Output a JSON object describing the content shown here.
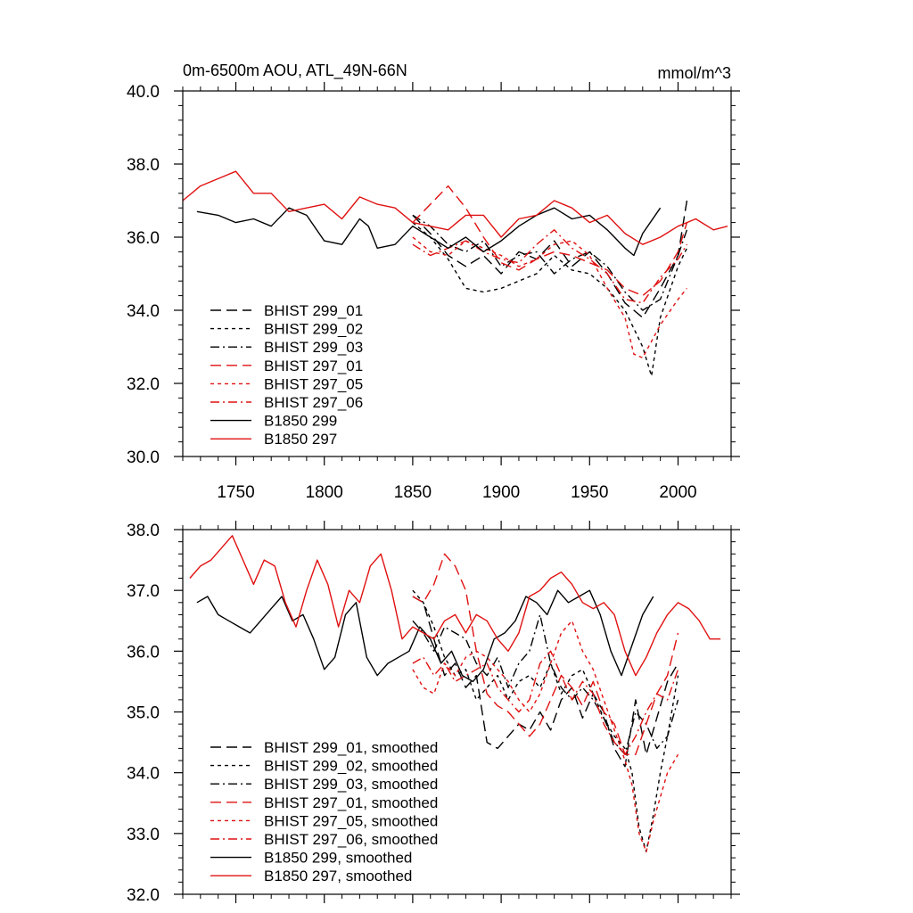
{
  "chart_data": [
    {
      "type": "line",
      "title": "0m-6500m AOU, ATL_49N-66N",
      "units": "mmol/m^3",
      "xlim": [
        1720,
        2030
      ],
      "ylim": [
        30,
        40
      ],
      "xticks": [
        1750,
        1800,
        1850,
        1900,
        1950,
        2000
      ],
      "yticks": [
        30,
        32,
        34,
        36,
        38,
        40
      ],
      "ytick_labels": [
        "30.0",
        "32.0",
        "34.0",
        "36.0",
        "38.0",
        "40.0"
      ],
      "grid": false,
      "legend_position": "bottom-left",
      "series": [
        {
          "name": "BHIST 299_01",
          "color": "#000000",
          "dash": "long-dash",
          "x": [
            1850,
            1860,
            1870,
            1880,
            1890,
            1900,
            1910,
            1920,
            1930,
            1940,
            1950,
            1960,
            1970,
            1980,
            1990,
            2000,
            2005
          ],
          "y": [
            36.6,
            36.1,
            35.5,
            35.2,
            35.5,
            35.0,
            35.6,
            35.4,
            35.9,
            35.2,
            35.6,
            35.0,
            34.2,
            33.8,
            34.6,
            35.5,
            37.0
          ]
        },
        {
          "name": "BHIST 299_02",
          "color": "#000000",
          "dash": "short-dash",
          "x": [
            1850,
            1860,
            1870,
            1880,
            1890,
            1900,
            1910,
            1920,
            1930,
            1940,
            1950,
            1960,
            1970,
            1980,
            1985,
            1990,
            2000,
            2005
          ],
          "y": [
            36.4,
            36.0,
            35.4,
            34.6,
            34.5,
            34.6,
            34.8,
            35.0,
            35.5,
            35.1,
            35.0,
            34.6,
            34.0,
            33.0,
            32.2,
            33.8,
            35.2,
            35.7
          ]
        },
        {
          "name": "BHIST 299_03",
          "color": "#000000",
          "dash": "dash-dot",
          "x": [
            1850,
            1860,
            1870,
            1880,
            1890,
            1900,
            1910,
            1920,
            1930,
            1940,
            1950,
            1960,
            1970,
            1980,
            1990,
            2000,
            2005
          ],
          "y": [
            36.6,
            36.3,
            35.8,
            35.6,
            35.9,
            35.2,
            35.5,
            35.6,
            35.0,
            35.4,
            35.6,
            35.2,
            34.5,
            34.0,
            34.3,
            35.5,
            36.2
          ]
        },
        {
          "name": "BHIST 297_01",
          "color": "#e01010",
          "dash": "long-dash",
          "x": [
            1850,
            1860,
            1870,
            1880,
            1890,
            1900,
            1910,
            1920,
            1930,
            1940,
            1950,
            1960,
            1970,
            1980,
            1990,
            2000,
            2005
          ],
          "y": [
            36.4,
            36.9,
            37.4,
            36.8,
            36.0,
            35.3,
            35.1,
            35.4,
            35.6,
            35.5,
            35.3,
            35.1,
            34.6,
            34.4,
            34.8,
            35.6,
            36.4
          ]
        },
        {
          "name": "BHIST 297_05",
          "color": "#e01010",
          "dash": "short-dash",
          "x": [
            1850,
            1860,
            1870,
            1880,
            1890,
            1900,
            1910,
            1920,
            1930,
            1940,
            1950,
            1960,
            1970,
            1975,
            1980,
            1990,
            2000,
            2005
          ],
          "y": [
            36.0,
            35.6,
            35.5,
            35.9,
            35.7,
            35.5,
            35.2,
            35.4,
            35.8,
            35.9,
            35.5,
            34.6,
            33.8,
            32.8,
            32.7,
            33.6,
            34.3,
            34.6
          ]
        },
        {
          "name": "BHIST 297_06",
          "color": "#e01010",
          "dash": "dash-dot",
          "x": [
            1850,
            1860,
            1870,
            1880,
            1890,
            1900,
            1910,
            1920,
            1930,
            1940,
            1950,
            1960,
            1970,
            1980,
            1990,
            2000,
            2005
          ],
          "y": [
            35.8,
            35.5,
            35.7,
            35.9,
            35.6,
            35.4,
            35.3,
            35.8,
            36.2,
            35.7,
            35.4,
            35.0,
            34.3,
            34.2,
            34.9,
            35.4,
            35.8
          ]
        },
        {
          "name": "B1850 299",
          "color": "#000000",
          "dash": "solid",
          "x": [
            1728,
            1740,
            1750,
            1760,
            1770,
            1780,
            1790,
            1800,
            1810,
            1820,
            1825,
            1830,
            1840,
            1850,
            1860,
            1870,
            1880,
            1890,
            1900,
            1910,
            1920,
            1930,
            1940,
            1950,
            1960,
            1970,
            1975,
            1980,
            1990
          ],
          "y": [
            36.7,
            36.6,
            36.4,
            36.5,
            36.3,
            36.8,
            36.6,
            35.9,
            35.8,
            36.5,
            36.3,
            35.7,
            35.8,
            36.3,
            36.0,
            35.7,
            36.0,
            35.6,
            35.9,
            36.3,
            36.6,
            36.8,
            36.5,
            36.6,
            36.2,
            35.7,
            35.5,
            36.1,
            36.8
          ]
        },
        {
          "name": "B1850 297",
          "color": "#e01010",
          "dash": "solid",
          "x": [
            1720,
            1730,
            1740,
            1750,
            1760,
            1770,
            1780,
            1790,
            1800,
            1810,
            1820,
            1830,
            1840,
            1850,
            1860,
            1870,
            1880,
            1890,
            1900,
            1910,
            1920,
            1930,
            1940,
            1950,
            1960,
            1970,
            1980,
            1990,
            2000,
            2010,
            2020,
            2028
          ],
          "y": [
            37.0,
            37.4,
            37.6,
            37.8,
            37.2,
            37.2,
            36.7,
            36.8,
            36.9,
            36.5,
            37.1,
            36.9,
            36.8,
            36.4,
            36.3,
            36.2,
            36.6,
            36.6,
            36.0,
            36.5,
            36.6,
            37.0,
            36.8,
            36.4,
            36.6,
            36.1,
            35.8,
            36.0,
            36.3,
            36.5,
            36.2,
            36.3
          ]
        }
      ]
    },
    {
      "type": "line",
      "xlim": [
        1720,
        2030
      ],
      "ylim": [
        32,
        38
      ],
      "xticks": [
        1750,
        1800,
        1850,
        1900,
        1950,
        2000
      ],
      "yticks": [
        32,
        33,
        34,
        35,
        36,
        37,
        38
      ],
      "ytick_labels": [
        "32.0",
        "33.0",
        "34.0",
        "35.0",
        "36.0",
        "37.0",
        "38.0"
      ],
      "grid": false,
      "legend_position": "bottom-left",
      "series": [
        {
          "name": "BHIST 299_01, smoothed",
          "color": "#000000",
          "dash": "long-dash",
          "x": [
            1850,
            1856,
            1862,
            1868,
            1874,
            1880,
            1886,
            1892,
            1898,
            1904,
            1910,
            1916,
            1922,
            1928,
            1934,
            1940,
            1946,
            1952,
            1958,
            1964,
            1970,
            1976,
            1982,
            1988,
            1994,
            2000
          ],
          "y": [
            36.9,
            36.8,
            36.2,
            35.6,
            35.8,
            35.4,
            35.6,
            34.5,
            34.4,
            34.6,
            34.8,
            34.7,
            35.0,
            34.7,
            35.2,
            35.4,
            34.9,
            35.3,
            35.0,
            34.4,
            34.1,
            35.2,
            34.3,
            34.9,
            35.5,
            35.8
          ]
        },
        {
          "name": "BHIST 299_02, smoothed",
          "color": "#000000",
          "dash": "short-dash",
          "x": [
            1850,
            1856,
            1862,
            1868,
            1874,
            1880,
            1886,
            1892,
            1898,
            1904,
            1910,
            1916,
            1922,
            1928,
            1934,
            1940,
            1946,
            1952,
            1958,
            1964,
            1970,
            1974,
            1978,
            1982,
            1986,
            1990,
            1994,
            2000
          ],
          "y": [
            37.0,
            36.8,
            36.4,
            35.9,
            35.6,
            35.7,
            35.2,
            35.4,
            35.6,
            35.2,
            35.5,
            35.6,
            35.4,
            35.8,
            35.3,
            35.6,
            35.7,
            35.3,
            34.9,
            34.6,
            34.4,
            34.0,
            33.1,
            32.7,
            33.3,
            34.0,
            34.6,
            35.6
          ]
        },
        {
          "name": "BHIST 299_03, smoothed",
          "color": "#000000",
          "dash": "dash-dot",
          "x": [
            1850,
            1856,
            1862,
            1868,
            1874,
            1880,
            1886,
            1892,
            1898,
            1904,
            1910,
            1916,
            1922,
            1928,
            1934,
            1940,
            1946,
            1952,
            1958,
            1964,
            1970,
            1976,
            1982,
            1988,
            1994,
            2000
          ],
          "y": [
            36.5,
            36.3,
            36.0,
            36.4,
            36.3,
            36.2,
            35.8,
            35.6,
            35.9,
            35.4,
            35.8,
            36.0,
            36.6,
            35.8,
            35.4,
            35.2,
            35.4,
            35.2,
            34.9,
            34.5,
            34.3,
            35.0,
            34.8,
            34.4,
            34.6,
            35.2
          ]
        },
        {
          "name": "BHIST 297_01, smoothed",
          "color": "#e01010",
          "dash": "long-dash",
          "x": [
            1850,
            1856,
            1862,
            1868,
            1874,
            1880,
            1886,
            1892,
            1898,
            1904,
            1910,
            1916,
            1922,
            1928,
            1934,
            1940,
            1946,
            1952,
            1958,
            1964,
            1970,
            1976,
            1982,
            1988,
            1994,
            2000
          ],
          "y": [
            36.9,
            36.8,
            37.1,
            37.6,
            37.4,
            37.0,
            36.0,
            35.3,
            35.1,
            35.0,
            34.8,
            34.6,
            34.8,
            35.2,
            35.6,
            35.4,
            35.1,
            35.5,
            35.0,
            34.8,
            34.3,
            34.3,
            34.8,
            35.3,
            35.6,
            36.3
          ]
        },
        {
          "name": "BHIST 297_05, smoothed",
          "color": "#e01010",
          "dash": "short-dash",
          "x": [
            1850,
            1856,
            1862,
            1868,
            1874,
            1880,
            1886,
            1892,
            1898,
            1904,
            1910,
            1916,
            1922,
            1928,
            1934,
            1940,
            1946,
            1952,
            1958,
            1964,
            1970,
            1974,
            1978,
            1982,
            1986,
            1990,
            1994,
            2000
          ],
          "y": [
            35.7,
            35.4,
            35.3,
            35.8,
            35.6,
            35.9,
            36.0,
            35.9,
            35.7,
            35.5,
            35.2,
            35.0,
            35.3,
            35.8,
            36.3,
            36.5,
            36.0,
            35.7,
            35.2,
            34.7,
            34.2,
            33.8,
            33.0,
            32.7,
            33.2,
            33.6,
            34.0,
            34.3
          ]
        },
        {
          "name": "BHIST 297_06, smoothed",
          "color": "#e01010",
          "dash": "dash-dot",
          "x": [
            1850,
            1856,
            1862,
            1868,
            1874,
            1880,
            1886,
            1892,
            1898,
            1904,
            1910,
            1916,
            1922,
            1928,
            1934,
            1940,
            1946,
            1952,
            1958,
            1964,
            1970,
            1976,
            1982,
            1988,
            1994,
            2000
          ],
          "y": [
            35.8,
            35.9,
            35.6,
            35.8,
            35.5,
            35.6,
            35.7,
            35.8,
            35.4,
            35.2,
            35.0,
            35.2,
            35.8,
            36.0,
            35.6,
            35.2,
            35.5,
            35.3,
            34.8,
            34.5,
            34.3,
            34.6,
            35.0,
            35.3,
            35.2,
            35.7
          ]
        },
        {
          "name": "B1850 299, smoothed",
          "color": "#000000",
          "dash": "solid",
          "x": [
            1728,
            1734,
            1740,
            1746,
            1752,
            1758,
            1764,
            1770,
            1776,
            1782,
            1788,
            1794,
            1800,
            1806,
            1812,
            1818,
            1824,
            1830,
            1836,
            1842,
            1848,
            1854,
            1860,
            1866,
            1872,
            1878,
            1884,
            1890,
            1896,
            1902,
            1908,
            1914,
            1920,
            1926,
            1932,
            1938,
            1944,
            1950,
            1956,
            1962,
            1968,
            1974,
            1980,
            1986
          ],
          "y": [
            36.8,
            36.9,
            36.6,
            36.5,
            36.4,
            36.3,
            36.5,
            36.7,
            36.9,
            36.5,
            36.6,
            36.2,
            35.7,
            35.9,
            36.6,
            36.8,
            35.9,
            35.6,
            35.8,
            35.9,
            36.0,
            36.4,
            36.2,
            35.8,
            36.0,
            35.6,
            35.5,
            35.7,
            36.2,
            36.3,
            36.5,
            36.9,
            36.8,
            36.6,
            37.0,
            36.8,
            36.9,
            37.0,
            36.6,
            36.0,
            35.6,
            36.1,
            36.6,
            36.9
          ]
        },
        {
          "name": "B1850 297, smoothed",
          "color": "#e01010",
          "dash": "solid",
          "x": [
            1724,
            1730,
            1736,
            1742,
            1748,
            1754,
            1760,
            1766,
            1772,
            1778,
            1784,
            1790,
            1796,
            1802,
            1808,
            1814,
            1820,
            1826,
            1832,
            1838,
            1844,
            1850,
            1856,
            1862,
            1868,
            1874,
            1880,
            1886,
            1892,
            1898,
            1904,
            1910,
            1916,
            1922,
            1928,
            1934,
            1940,
            1946,
            1952,
            1958,
            1964,
            1970,
            1976,
            1982,
            1988,
            1994,
            2000,
            2006,
            2012,
            2018,
            2024
          ],
          "y": [
            37.2,
            37.4,
            37.5,
            37.7,
            37.9,
            37.5,
            37.1,
            37.5,
            37.4,
            36.8,
            36.4,
            37.0,
            37.5,
            37.1,
            36.4,
            37.0,
            36.8,
            37.4,
            37.6,
            37.0,
            36.2,
            36.4,
            36.3,
            36.2,
            36.5,
            36.6,
            36.3,
            36.6,
            36.5,
            36.2,
            36.0,
            36.3,
            36.9,
            37.0,
            37.2,
            37.3,
            37.1,
            36.8,
            36.7,
            36.8,
            36.6,
            36.0,
            35.6,
            35.9,
            36.3,
            36.6,
            36.8,
            36.7,
            36.5,
            36.2,
            36.2
          ]
        }
      ]
    }
  ]
}
